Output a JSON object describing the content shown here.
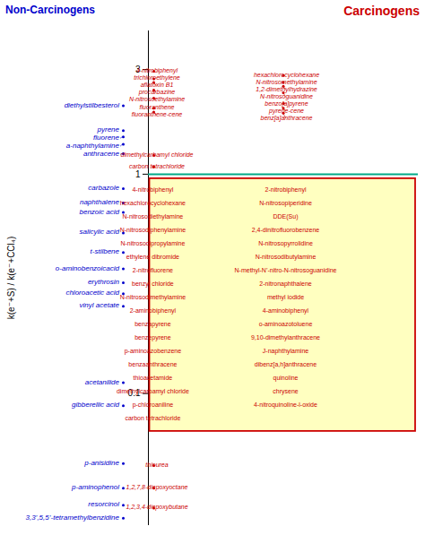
{
  "chart_data": {
    "type": "text_scatter",
    "ylabel": "k(e⁻+S) / k(e⁻+CCl₄)",
    "log": "y",
    "ylim": [
      0.025,
      4.5
    ],
    "yticks": [
      0.1,
      1,
      3
    ],
    "tick_labels": "y",
    "grid": false,
    "series": [
      {
        "name": "Non-Carcinogens",
        "color": "#0000CC",
        "labels": [
          "diethylstilbesterol",
          "pyrene",
          "fluorene",
          "a-naphthylamine",
          "anthracene",
          "carbazole",
          "naphthalene",
          "benzoic acid",
          "salicylic acid",
          "t-stilbene",
          "o-aminobenzoicacid",
          "erythrosin",
          "chloroacetic acid",
          "vinyl acetate",
          "acetanilide",
          "gibberellic acid",
          "p-anisidine",
          "p-aminophenol",
          "resorcinol",
          "3,3’,5,5’-tetramethylbenzidine"
        ],
        "values": [
          2.05,
          1.58,
          1.48,
          1.37,
          1.24,
          0.86,
          0.74,
          0.67,
          0.54,
          0.44,
          0.37,
          0.32,
          0.285,
          0.25,
          0.112,
          0.088,
          0.048,
          0.037,
          0.031,
          0.027
        ]
      },
      {
        "name": "Carcinogens",
        "color": "#CC0000",
        "labels": [
          "4-nitrobiphenyl",
          "trichloroethylene",
          "N-nitrosomethylamine",
          "1,2-dimethylhydrazine",
          "procarbazine",
          "N-nitrosoethylamine",
          "benzo[a]pyrene",
          "fluoranthene",
          "benz[a]anthracene",
          "dimethylcarbamyl chloride",
          "carbon tetrachloride",
          "hexachlorocyclohexane",
          "aflatoxin B1",
          "N-nitrosoguanidine",
          "pyrene-cene",
          "fluoranthene-cene",
          "thiourea",
          "1,2,7,8-diepoxyoctane",
          "1,2,3,4-diepoxybutane"
        ],
        "values": [
          2.95,
          2.72,
          2.62,
          2.52,
          2.42,
          2.22,
          2.1,
          2.0,
          1.9,
          1.22,
          1.08,
          2.82,
          2.62,
          2.35,
          2.0,
          1.92,
          0.047,
          0.037,
          0.03
        ]
      }
    ],
    "hline": {
      "y": 1.0,
      "color": "#00AA88"
    },
    "box": {
      "color": "#CC0000",
      "background": "#FFFFC0",
      "columns": [
        [
          "4-nitrobiphenyl",
          "hexachlorocyclohexane",
          "N-nitrosodiethylamine",
          "N-nitrosodiphenylamine",
          "N-nitrosodipropylamine",
          "ethylene dibromide",
          "2-nitrofluorene",
          "benzyl chloride",
          "N-nitrosodimethylamine",
          "2-aminobiphenyl",
          "benzapyrene",
          "benzepyrene",
          "p-aminoazobenzene",
          "benzaanthracene",
          "thioacetamide",
          "dimethylcarbamyl chloride",
          "p-chloroaniline",
          "carbon tetrachloride"
        ],
        [
          "2-nitrobiphenyl",
          "N-nitrosopiperidine",
          "DDE(Su)",
          "2,4-dinitrofluorobenzene",
          "N-nitrosopyrrolidine",
          "N-nitrosodibutylamine",
          "N-methyl-N’-nitro-N-nitrosoguanidine",
          "2-nitronaphthalene",
          "methyl iodide",
          "4-aminobiphenyl",
          "o-aminoazotoluene",
          "9,10-dimethylanthracene",
          "J-naphthylamine",
          "dibenz[a,h]anthracene",
          "quinoline",
          "chrysene",
          "4-nitroquinoline-l-oxide"
        ]
      ]
    }
  }
}
